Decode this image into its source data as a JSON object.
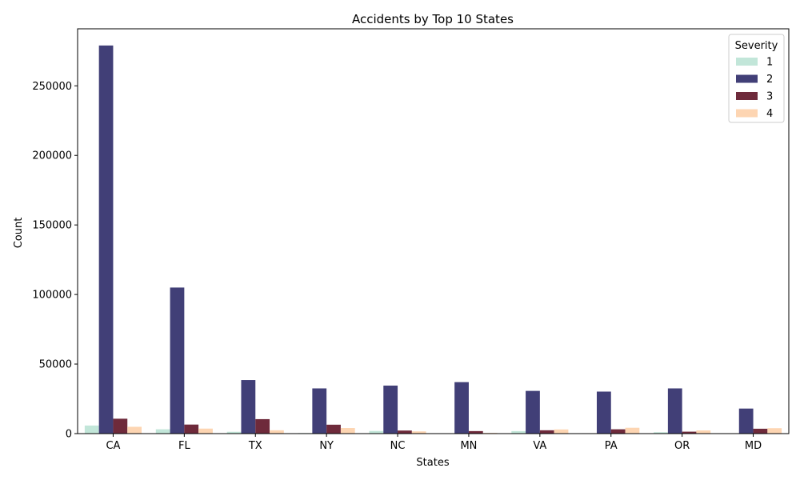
{
  "chart_data": {
    "type": "bar",
    "title": "Accidents by Top 10 States",
    "xlabel": "States",
    "ylabel": "Count",
    "ylim": [
      0,
      291000
    ],
    "yticks": [
      0,
      50000,
      100000,
      150000,
      200000,
      250000
    ],
    "categories": [
      "CA",
      "FL",
      "TX",
      "NY",
      "NC",
      "MN",
      "VA",
      "PA",
      "OR",
      "MD"
    ],
    "legend": {
      "title": "Severity",
      "placement": "top-right"
    },
    "series": [
      {
        "name": "1",
        "color": "#c2e6d9",
        "values": [
          5800,
          3100,
          1300,
          400,
          1900,
          200,
          1800,
          300,
          1000,
          200
        ]
      },
      {
        "name": "2",
        "color": "#413f77",
        "values": [
          279000,
          105000,
          38500,
          32500,
          34500,
          37000,
          30700,
          30200,
          32500,
          18000
        ]
      },
      {
        "name": "3",
        "color": "#6e2a3b",
        "values": [
          10700,
          6500,
          10400,
          6400,
          2200,
          1800,
          2400,
          3100,
          1400,
          3500
        ]
      },
      {
        "name": "4",
        "color": "#fdd5b2",
        "values": [
          4900,
          3600,
          2400,
          4000,
          1600,
          500,
          3000,
          4200,
          2300,
          3900
        ]
      }
    ]
  }
}
